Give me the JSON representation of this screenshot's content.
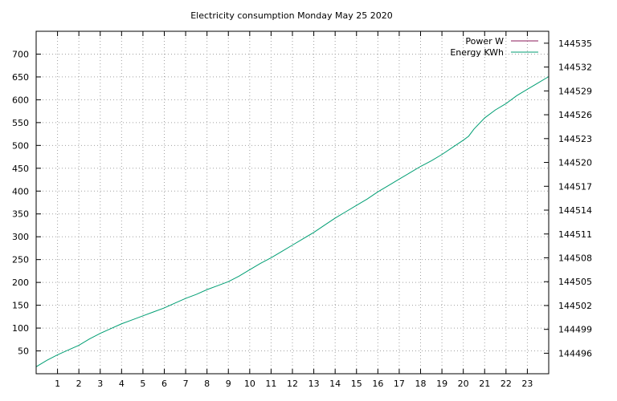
{
  "chart_data": {
    "type": "line",
    "title": "Electricity consumption Monday May 25 2020",
    "xlabel": "",
    "ylabel": "",
    "y2label": "",
    "x_ticks": [
      "1",
      "2",
      "3",
      "4",
      "5",
      "6",
      "7",
      "8",
      "9",
      "10",
      "11",
      "12",
      "13",
      "14",
      "15",
      "16",
      "17",
      "18",
      "19",
      "20",
      "21",
      "22",
      "23"
    ],
    "xlim": [
      0,
      24
    ],
    "ylim": [
      0,
      750
    ],
    "y_ticks": [
      "50",
      "100",
      "150",
      "200",
      "250",
      "300",
      "350",
      "400",
      "450",
      "500",
      "550",
      "600",
      "650",
      "700"
    ],
    "y2lim": [
      144493.42,
      144536.5
    ],
    "y2_ticks": [
      "144496",
      "144499",
      "144502",
      "144505",
      "144508",
      "144511",
      "144514",
      "144517",
      "144520",
      "144523",
      "144526",
      "144529",
      "144532",
      "144535"
    ],
    "grid": true,
    "legend_position": "top-right",
    "series": [
      {
        "name": "Power W",
        "color": "#8b1a5a",
        "axis": "left",
        "x": [],
        "values": []
      },
      {
        "name": "Energy KWh",
        "color": "#009e73",
        "axis": "right",
        "x": [
          0,
          0.5,
          1,
          1.5,
          2,
          2.5,
          3,
          3.5,
          4,
          4.5,
          5,
          5.5,
          6,
          6.5,
          7,
          7.5,
          8,
          8.5,
          9,
          9.5,
          10,
          10.5,
          11,
          11.5,
          12,
          12.5,
          13,
          13.5,
          14,
          14.5,
          15,
          15.5,
          16,
          16.5,
          17,
          17.5,
          18,
          18.5,
          19,
          19.5,
          20,
          20.25,
          20.5,
          21,
          21.5,
          22,
          22.5,
          23,
          23.5,
          24
        ],
        "values": [
          144494.3,
          144495.1,
          144495.8,
          144496.4,
          144497.0,
          144497.8,
          144498.5,
          144499.1,
          144499.7,
          144500.2,
          144500.7,
          144501.2,
          144501.7,
          144502.3,
          144502.9,
          144503.4,
          144504.0,
          144504.5,
          144505.0,
          144505.7,
          144506.5,
          144507.3,
          144508.0,
          144508.8,
          144509.6,
          144510.4,
          144511.2,
          144512.1,
          144513.0,
          144513.8,
          144514.6,
          144515.4,
          144516.3,
          144517.1,
          144517.9,
          144518.7,
          144519.5,
          144520.2,
          144521.0,
          144521.9,
          144522.8,
          144523.3,
          144524.2,
          144525.6,
          144526.6,
          144527.4,
          144528.4,
          144529.2,
          144530.0,
          144530.8
        ]
      }
    ]
  }
}
